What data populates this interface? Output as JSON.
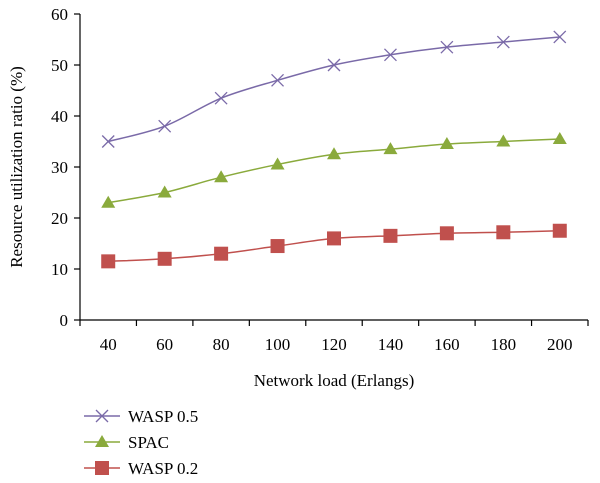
{
  "chart_data": {
    "type": "line",
    "title": "",
    "xlabel": "Network load (Erlangs)",
    "ylabel": "Resource utilization ratio (%)",
    "x": [
      40,
      60,
      80,
      100,
      120,
      140,
      160,
      180,
      200
    ],
    "xlim": [
      30,
      210
    ],
    "ylim": [
      0,
      60
    ],
    "yticks": [
      0,
      10,
      20,
      30,
      40,
      50,
      60
    ],
    "grid": false,
    "legend_position": "bottom-left",
    "series": [
      {
        "name": "WASP 0.5",
        "marker": "x",
        "color": "#7a6aa8",
        "values": [
          35,
          38,
          43.5,
          47,
          50,
          52,
          53.5,
          54.5,
          55.5
        ]
      },
      {
        "name": "SPAC",
        "marker": "triangle",
        "color": "#8aaa3c",
        "values": [
          23,
          25,
          28,
          30.5,
          32.5,
          33.5,
          34.5,
          35,
          35.5
        ]
      },
      {
        "name": "WASP 0.2",
        "marker": "square",
        "color": "#c0504d",
        "values": [
          11.5,
          12,
          13,
          14.5,
          16,
          16.5,
          17,
          17.2,
          17.5
        ]
      }
    ]
  }
}
